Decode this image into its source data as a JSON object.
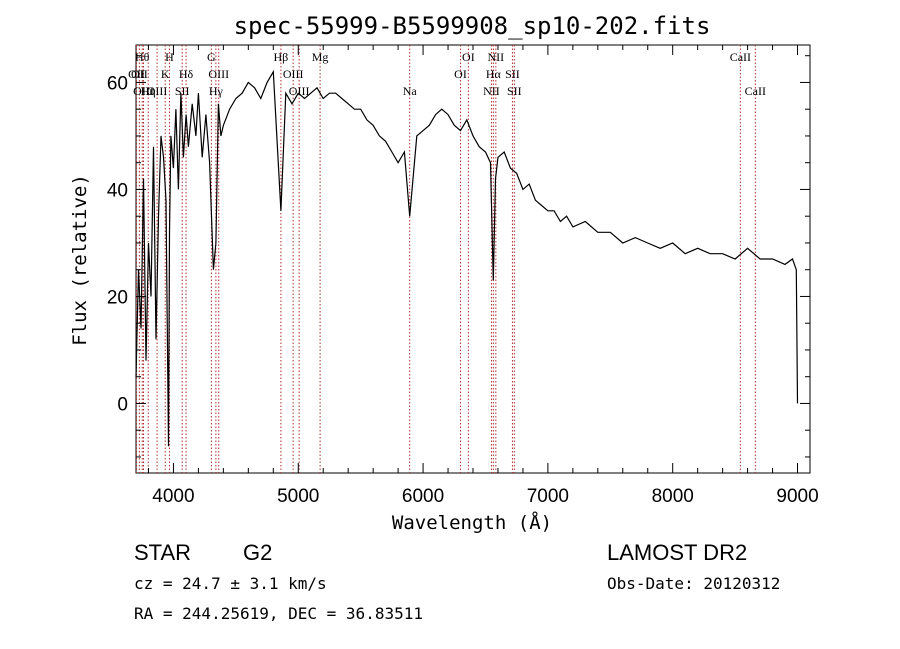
{
  "chart_data": {
    "type": "line",
    "title": "spec-55999-B5599908_sp10-202.fits",
    "xlabel": "Wavelength (Å)",
    "ylabel": "Flux (relative)",
    "xlim": [
      3700,
      9100
    ],
    "ylim": [
      -13,
      67
    ],
    "xticks": [
      4000,
      5000,
      6000,
      7000,
      8000,
      9000
    ],
    "yticks": [
      0,
      20,
      40,
      60
    ],
    "grid": false,
    "line_color": "#000000",
    "marker_color": "#b03030",
    "series": [
      {
        "x": [
          3700,
          3720,
          3740,
          3760,
          3780,
          3800,
          3820,
          3840,
          3860,
          3880,
          3900,
          3920,
          3940,
          3960,
          3968,
          3980,
          4000,
          4020,
          4040,
          4060,
          4080,
          4101,
          4120,
          4150,
          4180,
          4200,
          4230,
          4260,
          4290,
          4320,
          4340,
          4360,
          4380,
          4400,
          4450,
          4500,
          4550,
          4600,
          4650,
          4700,
          4750,
          4800,
          4861,
          4900,
          4950,
          5000,
          5050,
          5100,
          5150,
          5200,
          5250,
          5300,
          5350,
          5400,
          5450,
          5500,
          5550,
          5600,
          5650,
          5700,
          5750,
          5800,
          5850,
          5893,
          5950,
          6000,
          6050,
          6100,
          6150,
          6200,
          6250,
          6300,
          6350,
          6400,
          6450,
          6500,
          6540,
          6563,
          6580,
          6600,
          6650,
          6700,
          6750,
          6800,
          6850,
          6900,
          6950,
          7000,
          7050,
          7100,
          7150,
          7200,
          7300,
          7400,
          7500,
          7600,
          7700,
          7800,
          7900,
          8000,
          8100,
          8200,
          8300,
          8400,
          8500,
          8600,
          8700,
          8800,
          8900,
          8960,
          8990,
          9000
        ],
        "y": [
          5,
          25,
          14,
          42,
          8,
          30,
          20,
          48,
          12,
          35,
          50,
          46,
          38,
          -8,
          32,
          50,
          44,
          55,
          40,
          58,
          46,
          54,
          48,
          56,
          50,
          58,
          46,
          54,
          45,
          25,
          30,
          56,
          50,
          52,
          55,
          57,
          58,
          60,
          59,
          57,
          60,
          62,
          36,
          58,
          56,
          58,
          57,
          58,
          59,
          57,
          58,
          58,
          57,
          56,
          55,
          55,
          53,
          52,
          50,
          49,
          47,
          45,
          47,
          35,
          50,
          51,
          52,
          54,
          55,
          54,
          52,
          51,
          53,
          50,
          48,
          47,
          45,
          23,
          42,
          46,
          47,
          44,
          43,
          40,
          41,
          38,
          37,
          36,
          36,
          34,
          35,
          33,
          34,
          32,
          32,
          30,
          31,
          30,
          29,
          30,
          28,
          29,
          28,
          28,
          27,
          29,
          27,
          27,
          26,
          27,
          25,
          0
        ]
      }
    ],
    "lines": [
      {
        "wave": 3704,
        "label": "OII",
        "row": 1
      },
      {
        "wave": 3727,
        "label": "OII",
        "row": 1
      },
      {
        "wave": 3750,
        "label": "Hθ",
        "row": 0
      },
      {
        "wave": 3760,
        "label": "OIII",
        "row": 2
      },
      {
        "wave": 3798,
        "label": "Hη",
        "row": 2
      },
      {
        "wave": 3869,
        "label": "OIII",
        "row": 2
      },
      {
        "wave": 3934,
        "label": "K",
        "row": 1
      },
      {
        "wave": 3968,
        "label": "H",
        "row": 0
      },
      {
        "wave": 4070,
        "label": "SII",
        "row": 2
      },
      {
        "wave": 4101,
        "label": "Hδ",
        "row": 1
      },
      {
        "wave": 4304,
        "label": "G",
        "row": 0
      },
      {
        "wave": 4340,
        "label": "Hγ",
        "row": 2
      },
      {
        "wave": 4363,
        "label": "OIII",
        "row": 1
      },
      {
        "wave": 4861,
        "label": "Hβ",
        "row": 0
      },
      {
        "wave": 4959,
        "label": "OIII",
        "row": 1
      },
      {
        "wave": 5007,
        "label": "OIII",
        "row": 2
      },
      {
        "wave": 5175,
        "label": "Mg",
        "row": 0
      },
      {
        "wave": 5893,
        "label": "Na",
        "row": 2
      },
      {
        "wave": 6300,
        "label": "OI",
        "row": 1
      },
      {
        "wave": 6363,
        "label": "OI",
        "row": 0
      },
      {
        "wave": 6548,
        "label": "NII",
        "row": 2
      },
      {
        "wave": 6563,
        "label": "Hα",
        "row": 1
      },
      {
        "wave": 6583,
        "label": "NII",
        "row": 0
      },
      {
        "wave": 6716,
        "label": "SII",
        "row": 1
      },
      {
        "wave": 6731,
        "label": "SII",
        "row": 2
      },
      {
        "wave": 8542,
        "label": "CaII",
        "row": 0
      },
      {
        "wave": 8662,
        "label": "CaII",
        "row": 2
      }
    ]
  },
  "info": {
    "class": "STAR",
    "subclass": "G2",
    "survey": "LAMOST DR2",
    "cz": "cz = 24.7 ± 3.1 km/s",
    "obs_date": "Obs-Date: 20120312",
    "coords": "RA = 244.25619, DEC =  36.83511"
  }
}
